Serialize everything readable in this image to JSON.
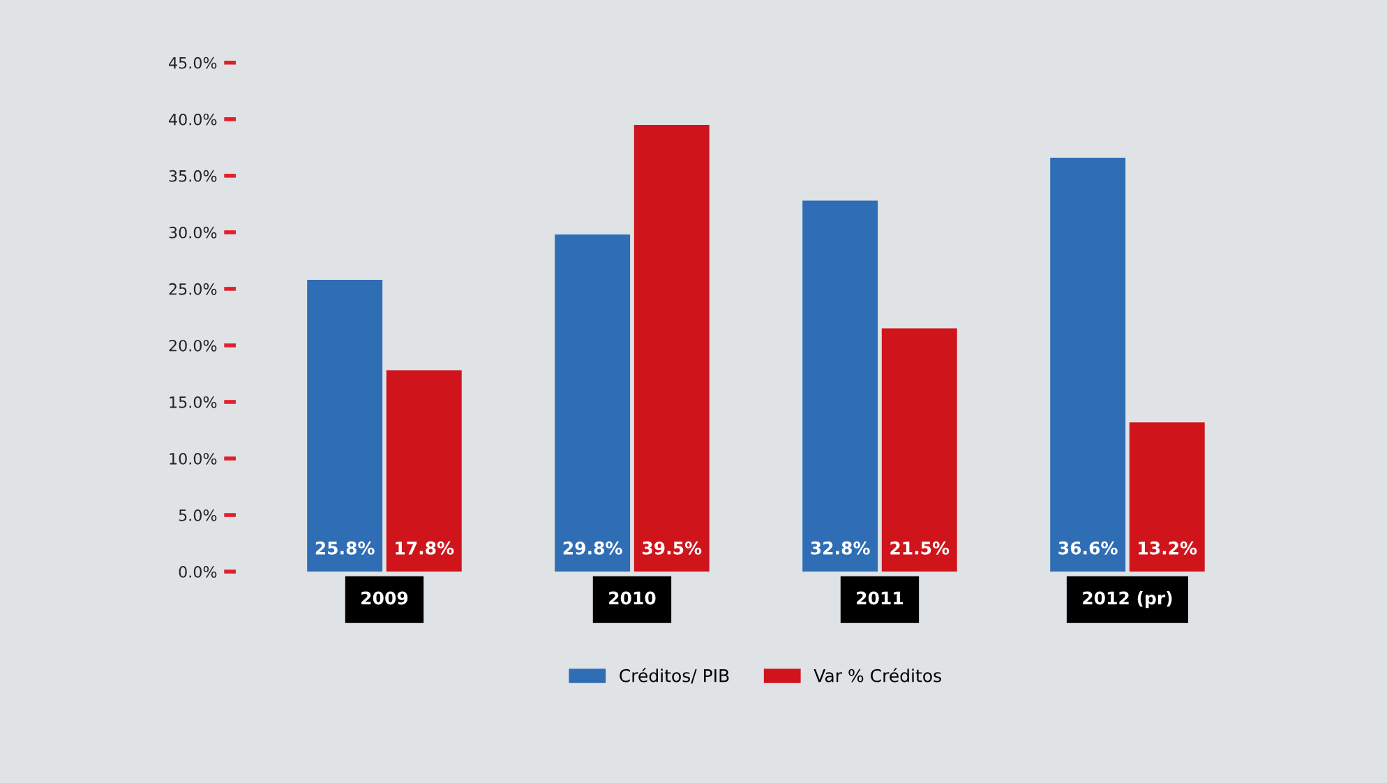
{
  "chart_data": {
    "type": "bar",
    "categories": [
      "2009",
      "2010",
      "2011",
      "2012 (pr)"
    ],
    "series": [
      {
        "name": "Créditos/ PIB",
        "color": "#2f6db5",
        "values": [
          25.8,
          29.8,
          32.8,
          36.6
        ],
        "value_labels": [
          "25.8%",
          "29.8%",
          "32.8%",
          "36.6%"
        ]
      },
      {
        "name": "Var % Créditos",
        "color": "#d0141c",
        "values": [
          17.8,
          39.5,
          21.5,
          13.2
        ],
        "value_labels": [
          "17.8%",
          "39.5%",
          "21.5%",
          "13.2%"
        ]
      }
    ],
    "ylim": [
      0,
      45
    ],
    "yticks": [
      {
        "value": 0,
        "label": "0.0%"
      },
      {
        "value": 5,
        "label": "5.0%"
      },
      {
        "value": 10,
        "label": "10.0%"
      },
      {
        "value": 15,
        "label": "15.0%"
      },
      {
        "value": 20,
        "label": "20.0%"
      },
      {
        "value": 25,
        "label": "25.0%"
      },
      {
        "value": 30,
        "label": "30.0%"
      },
      {
        "value": 35,
        "label": "35.0%"
      },
      {
        "value": 40,
        "label": "40.0%"
      },
      {
        "value": 45,
        "label": "45.0%"
      }
    ],
    "grid": false,
    "legend": "bottom"
  }
}
